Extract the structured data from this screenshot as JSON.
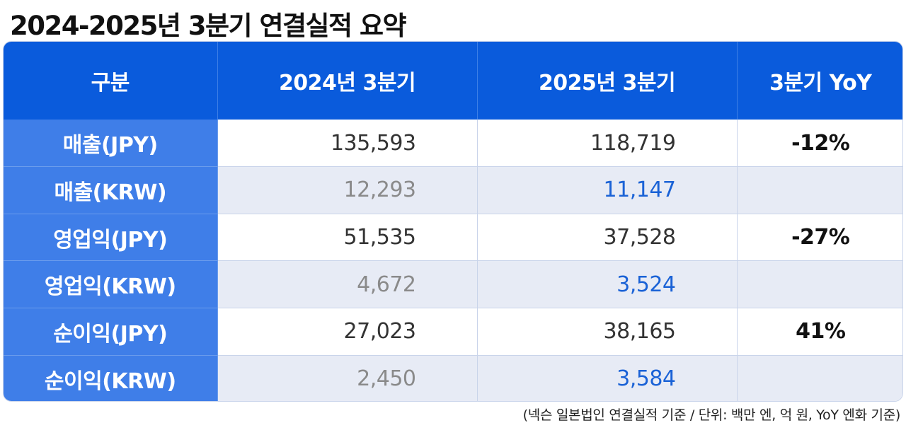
{
  "title": "2024-2025년 3분기 연결실적 요약",
  "table": {
    "headers": [
      "구분",
      "2024년 3분기",
      "2025년 3분기",
      "3분기 YoY"
    ],
    "rows": [
      {
        "label": "매출(JPY)",
        "v2024": "135,593",
        "v2025": "118,719",
        "yoy": "-12%"
      },
      {
        "label": "매출(KRW)",
        "v2024": "12,293",
        "v2025": "11,147",
        "yoy": ""
      },
      {
        "label": "영업익(JPY)",
        "v2024": "51,535",
        "v2025": "37,528",
        "yoy": "-27%"
      },
      {
        "label": "영업익(KRW)",
        "v2024": "4,672",
        "v2025": "3,524",
        "yoy": ""
      },
      {
        "label": "순이익(JPY)",
        "v2024": "27,023",
        "v2025": "38,165",
        "yoy": "41%"
      },
      {
        "label": "순이익(KRW)",
        "v2024": "2,450",
        "v2025": "3,584",
        "yoy": ""
      }
    ]
  },
  "footnote": "(넥슨 일본법인 연결실적 기준 / 단위: 백만 엔, 억 원, YoY 엔화 기준)",
  "colors": {
    "header_bg": "#0a5bdc",
    "label_bg": "#3f7ee8",
    "krw_row_bg": "#e7ebf5",
    "krw_2025_text": "#1a62d6",
    "krw_2024_text": "#8a8a8a"
  }
}
